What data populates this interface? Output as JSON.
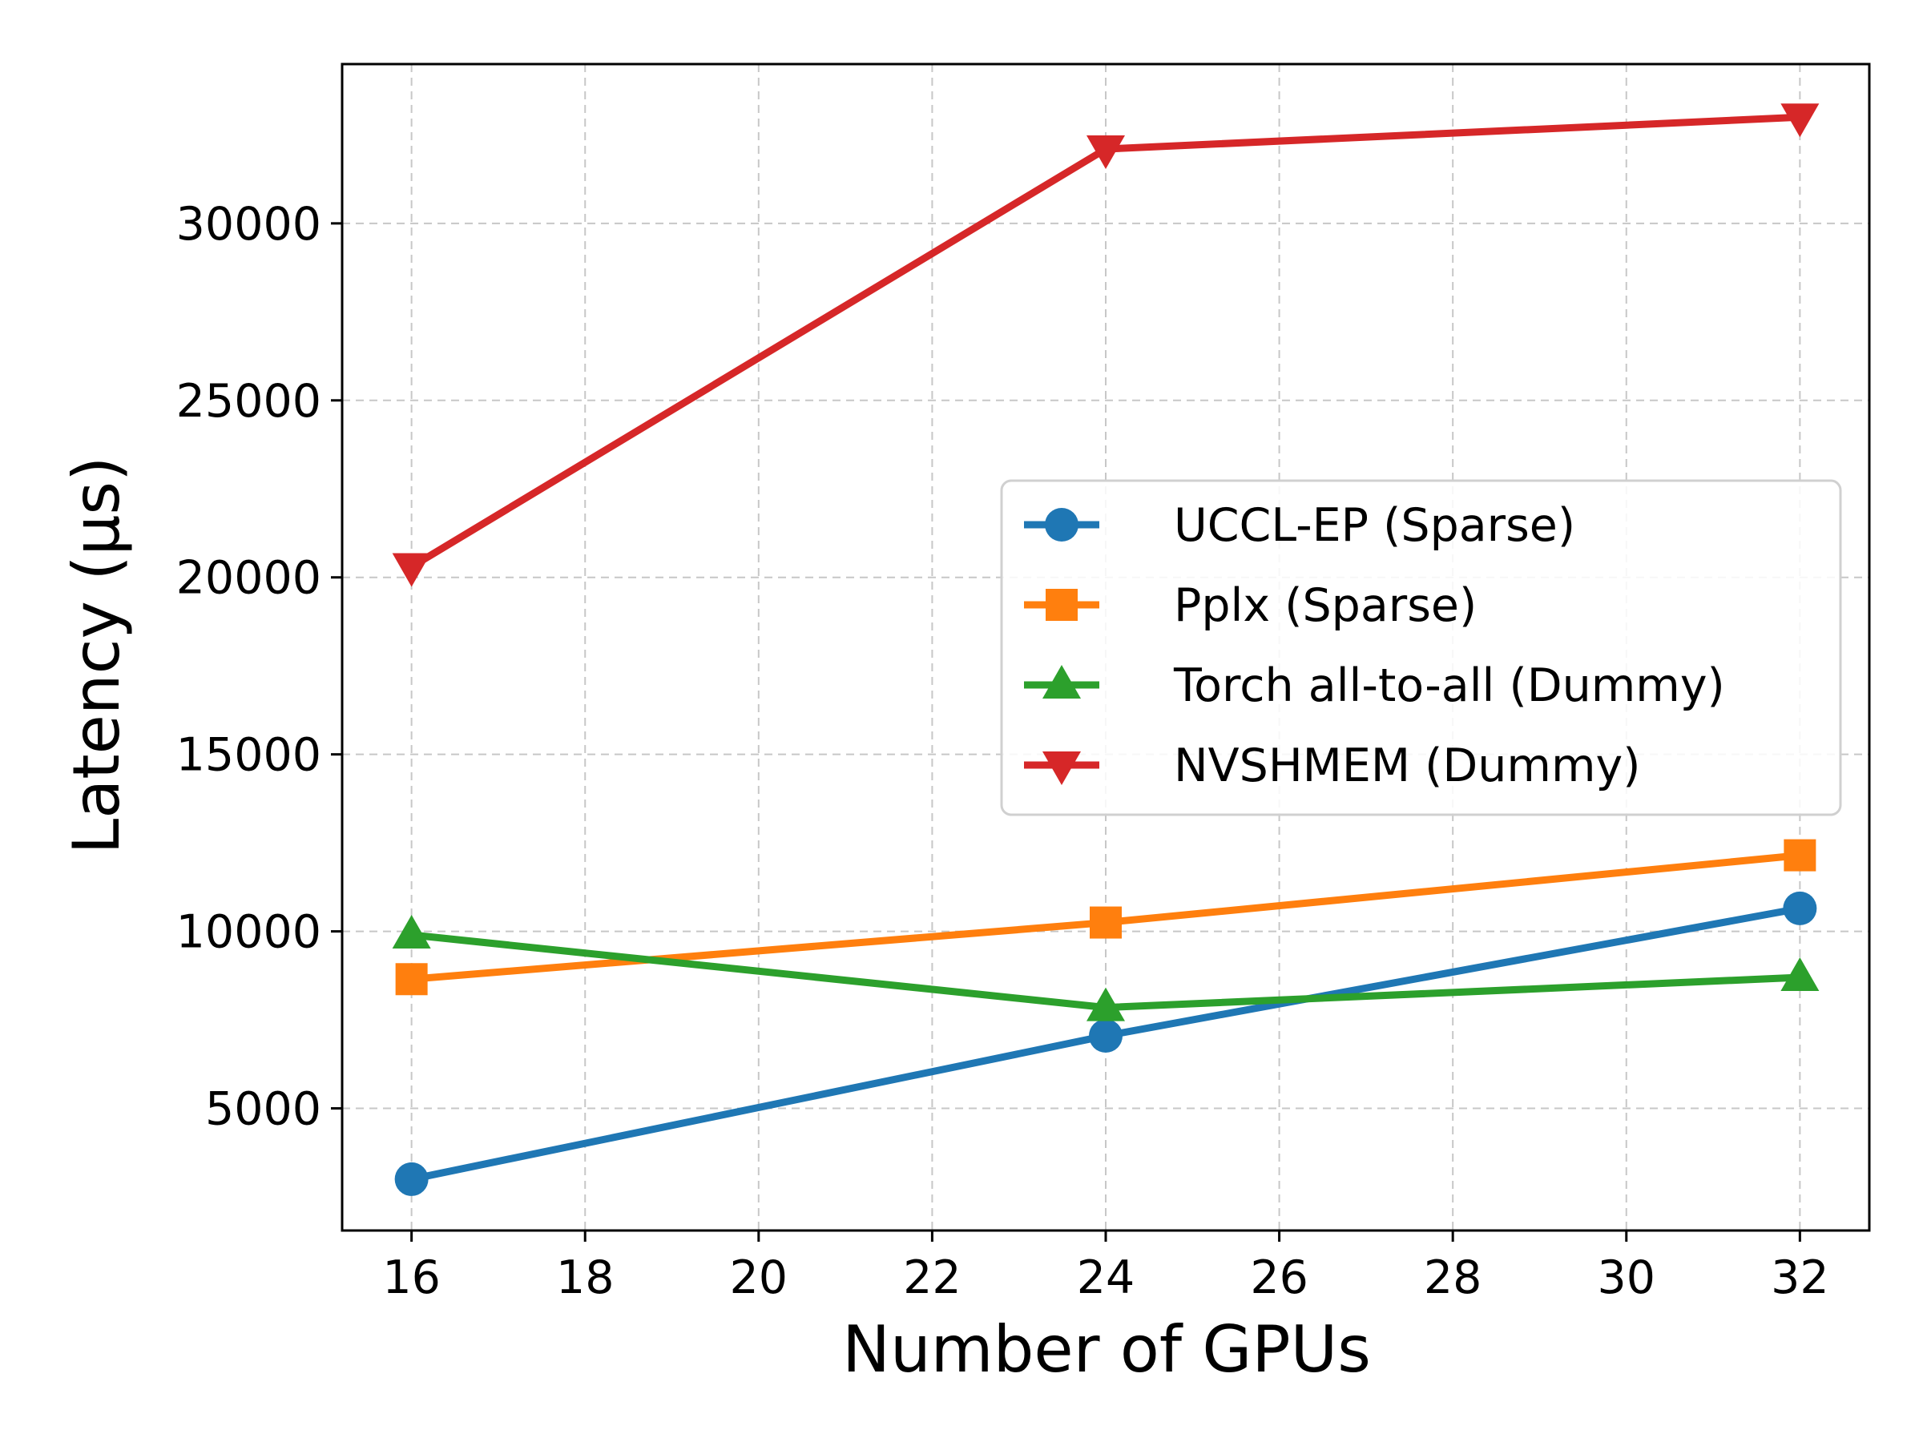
{
  "chart_data": {
    "type": "line",
    "title": "",
    "xlabel": "Number of GPUs",
    "ylabel": "Latency (μs)",
    "xlim": [
      15.2,
      32.8
    ],
    "ylim": [
      1550,
      34500
    ],
    "xticks": [
      16,
      18,
      20,
      22,
      24,
      26,
      28,
      30,
      32
    ],
    "yticks": [
      5000,
      10000,
      15000,
      20000,
      25000,
      30000
    ],
    "grid": true,
    "legend_position": "center-right",
    "x": [
      16,
      24,
      32
    ],
    "series": [
      {
        "name": "UCCL-EP (Sparse)",
        "values": [
          3000,
          7050,
          10650
        ],
        "color": "#1f77b4",
        "marker": "circle"
      },
      {
        "name": "Pplx (Sparse)",
        "values": [
          8650,
          10250,
          12150
        ],
        "color": "#ff7f0e",
        "marker": "square"
      },
      {
        "name": "Torch all-to-all (Dummy)",
        "values": [
          9900,
          7850,
          8700
        ],
        "color": "#2ca02c",
        "marker": "triangle-up"
      },
      {
        "name": "NVSHMEM (Dummy)",
        "values": [
          20300,
          32100,
          33000
        ],
        "color": "#d62728",
        "marker": "triangle-down"
      }
    ]
  }
}
